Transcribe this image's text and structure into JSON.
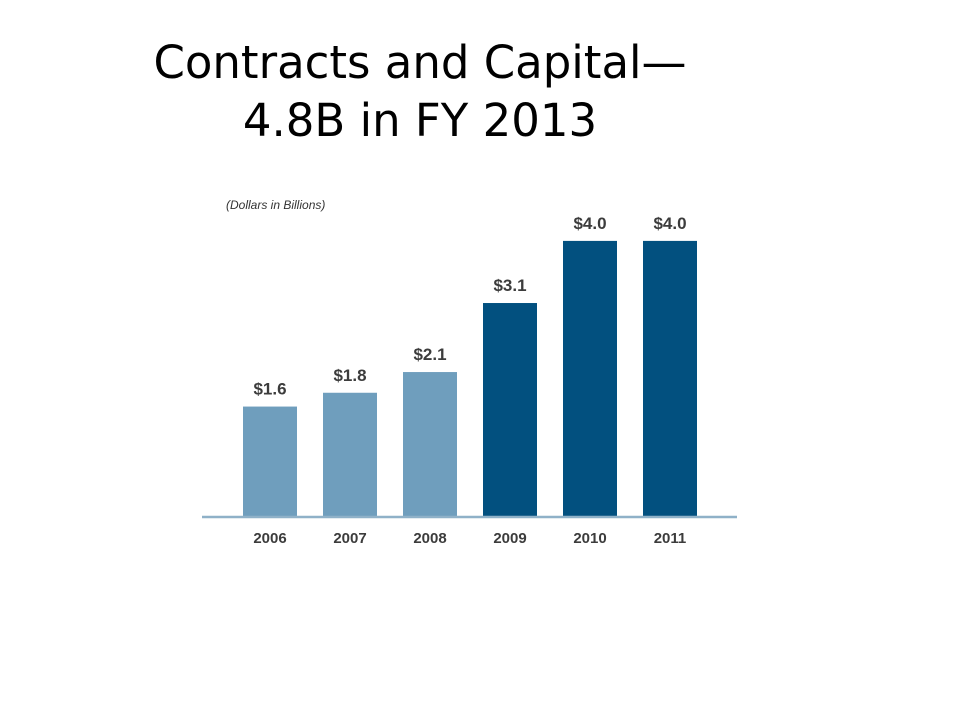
{
  "slide": {
    "title_line1": "Contracts and Capital—",
    "title_line2": "4.8B in FY 2013"
  },
  "chart_data": {
    "type": "bar",
    "unit_note": "(Dollars in Billions)",
    "categories": [
      "2006",
      "2007",
      "2008",
      "2009",
      "2010",
      "2011"
    ],
    "values": [
      1.6,
      1.8,
      2.1,
      3.1,
      4.0,
      4.0
    ],
    "value_labels": [
      "$1.6",
      "$1.8",
      "$2.1",
      "$3.1",
      "$4.0",
      "$4.0"
    ],
    "bar_colors": [
      "#6f9ebd",
      "#6f9ebd",
      "#6f9ebd",
      "#02507f",
      "#02507f",
      "#02507f"
    ],
    "axis_color": "#8fb1c8",
    "ylim": [
      0,
      4.1
    ],
    "grid": false
  }
}
